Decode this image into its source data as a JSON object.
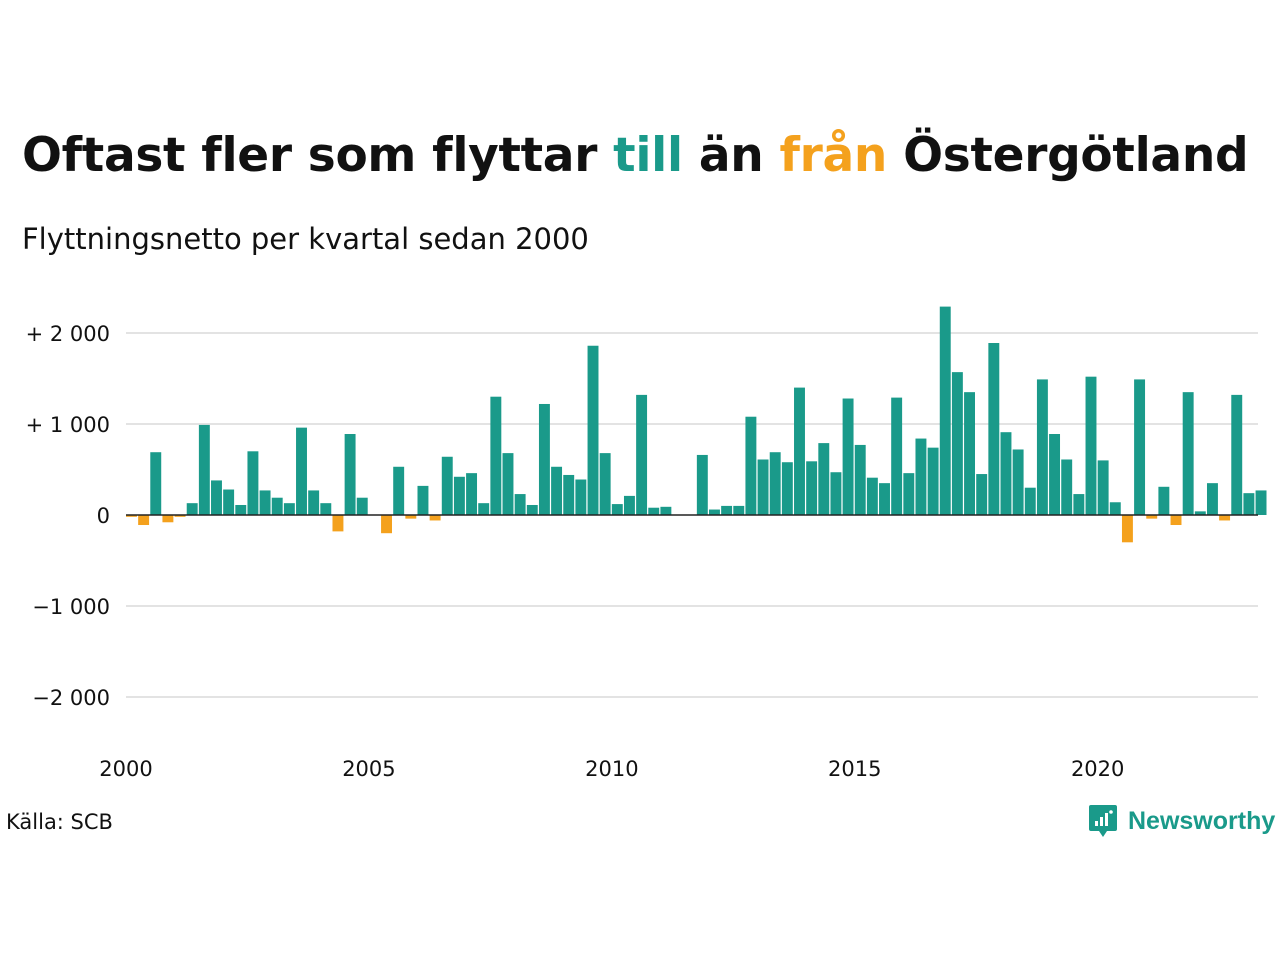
{
  "title": {
    "part1": "Oftast fler som flyttar ",
    "part2": "till",
    "part3": " än ",
    "part4": "från",
    "part5": " Östergötland"
  },
  "subtitle": "Flyttningsnetto per kvartal sedan 2000",
  "source": "Källa: SCB",
  "brand": {
    "name": "Newsworthy",
    "icon": "newsworthy-logo-icon"
  },
  "colors": {
    "positive": "#1a9a8a",
    "negative": "#f4a11d",
    "grid": "#e3e3e3",
    "baseline": "#222222",
    "text": "#111111",
    "brand": "#1a9a8a"
  },
  "chart_data": {
    "type": "bar",
    "title": "Oftast fler som flyttar till än från Östergötland",
    "subtitle": "Flyttningsnetto per kvartal sedan 2000",
    "xlabel": "",
    "ylabel": "",
    "x_start": 2000.0,
    "x_step": 0.25,
    "xlim": [
      2000.0,
      2023.3
    ],
    "ylim": [
      -2400,
      2400
    ],
    "x_ticks": [
      2000,
      2005,
      2010,
      2015,
      2020
    ],
    "x_tick_labels": [
      "2000",
      "2005",
      "2010",
      "2015",
      "2020"
    ],
    "y_ticks": [
      2000,
      1000,
      0,
      -1000,
      -2000
    ],
    "y_tick_labels": [
      "+ 2 000",
      "+ 1 000",
      "0",
      "−1 000",
      "−2 000"
    ],
    "grid": true,
    "legend": "none",
    "values": [
      -20,
      -110,
      690,
      -80,
      -20,
      130,
      990,
      380,
      280,
      110,
      700,
      270,
      190,
      130,
      960,
      270,
      130,
      -180,
      890,
      190,
      0,
      -200,
      530,
      -40,
      320,
      -60,
      640,
      420,
      460,
      130,
      1300,
      680,
      230,
      110,
      1220,
      530,
      440,
      390,
      1860,
      680,
      120,
      210,
      1320,
      80,
      90,
      0,
      0,
      660,
      60,
      100,
      100,
      1080,
      610,
      690,
      580,
      1400,
      590,
      790,
      470,
      1280,
      770,
      410,
      350,
      1290,
      460,
      840,
      740,
      2290,
      1570,
      1350,
      450,
      1890,
      910,
      720,
      300,
      1490,
      890,
      610,
      230,
      1520,
      600,
      140,
      -300,
      1490,
      -40,
      310,
      -110,
      1350,
      40,
      350,
      -60,
      1320,
      240,
      270
    ]
  }
}
